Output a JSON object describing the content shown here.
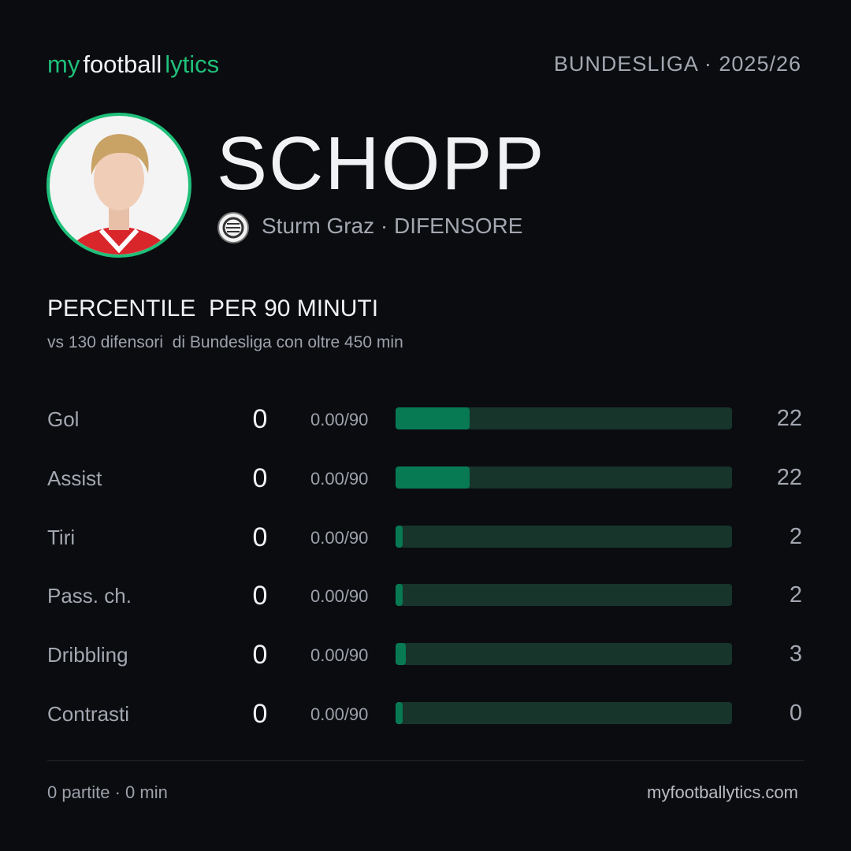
{
  "header": {
    "brand": [
      "my",
      "football",
      "lytics"
    ],
    "league": "BUNDESLIGA · 2025/26"
  },
  "player": {
    "name": "SCHOPP",
    "team_line": "Sturm Graz · DIFENSORE"
  },
  "section": {
    "title": "PERCENTILE  PER 90 MINUTI",
    "subtitle": "vs 130 difensori  di Bundesliga con oltre 450 min"
  },
  "xlim": [
    0,
    100
  ],
  "rows": [
    {
      "label": "Gol",
      "value": 0,
      "per90": "0.00/90",
      "percentile": 22
    },
    {
      "label": "Assist",
      "value": 0,
      "per90": "0.00/90",
      "percentile": 22
    },
    {
      "label": "Tiri",
      "value": 0,
      "per90": "0.00/90",
      "percentile": 2
    },
    {
      "label": "Pass. ch.",
      "value": 0,
      "per90": "0.00/90",
      "percentile": 2
    },
    {
      "label": "Dribbling",
      "value": 0,
      "per90": "0.00/90",
      "percentile": 3
    },
    {
      "label": "Contrasti",
      "value": 0,
      "per90": "0.00/90",
      "percentile": 0
    }
  ],
  "footer": {
    "stats": "0 partite · 0 min",
    "site": "myfootballytics.com"
  }
}
